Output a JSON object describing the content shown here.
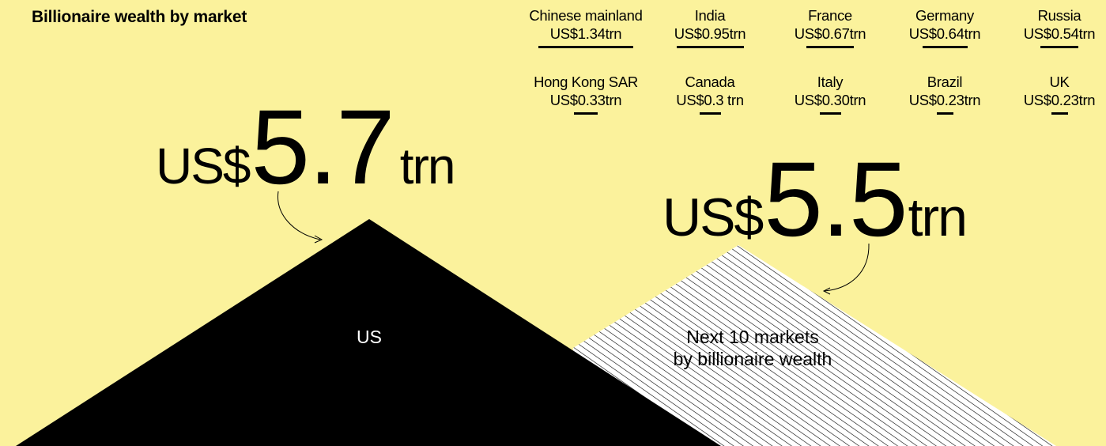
{
  "title": "Billionaire wealth by market",
  "colors": {
    "background": "#fbf29c",
    "us_fill": "#000000",
    "hatch": "#000000"
  },
  "us": {
    "prefix": "US$",
    "number": "5.7",
    "unit": "trn",
    "label": "US"
  },
  "next10": {
    "prefix": "US$",
    "number": "5.5",
    "unit": "trn",
    "label_line1": "Next 10 markets",
    "label_line2": "by billionaire wealth"
  },
  "chart_data": {
    "type": "area",
    "title": "Billionaire wealth by market",
    "unit": "US$ trn",
    "series": [
      {
        "name": "US",
        "value": 5.7
      },
      {
        "name": "Next 10 markets by billionaire wealth",
        "value": 5.5
      }
    ],
    "breakdown": [
      {
        "market": "Chinese mainland",
        "value_label": "US$1.34trn",
        "value": 1.34
      },
      {
        "market": "India",
        "value_label": "US$0.95trn",
        "value": 0.95
      },
      {
        "market": "France",
        "value_label": "US$0.67trn",
        "value": 0.67
      },
      {
        "market": "Germany",
        "value_label": "US$0.64trn",
        "value": 0.64
      },
      {
        "market": "Russia",
        "value_label": "US$0.54trn",
        "value": 0.54
      },
      {
        "market": "Hong Kong SAR",
        "value_label": "US$0.33trn",
        "value": 0.33
      },
      {
        "market": "Canada",
        "value_label": "US$0.3 trn",
        "value": 0.3
      },
      {
        "market": "Italy",
        "value_label": "US$0.30trn",
        "value": 0.3
      },
      {
        "market": "Brazil",
        "value_label": "US$0.23trn",
        "value": 0.23
      },
      {
        "market": "UK",
        "value_label": "US$0.23trn",
        "value": 0.23
      }
    ]
  }
}
